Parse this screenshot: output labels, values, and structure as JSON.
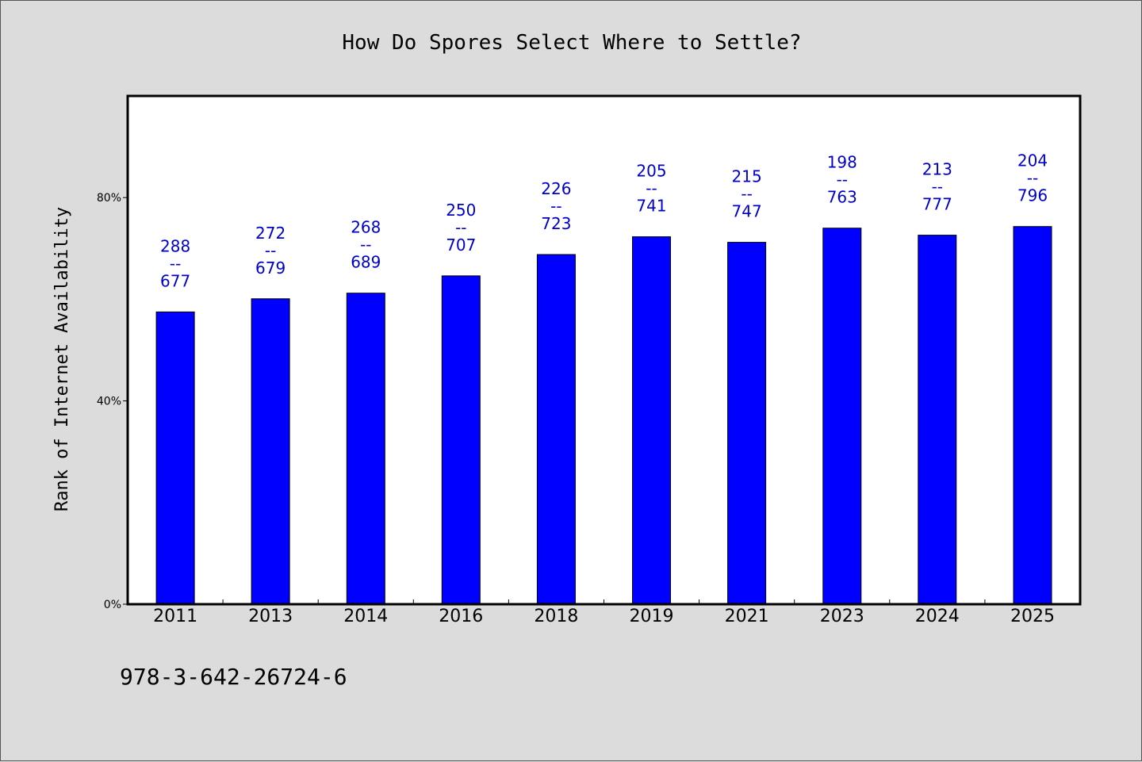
{
  "chart_data": {
    "type": "bar",
    "title": "How Do Spores Select Where to Settle?",
    "xlabel": "",
    "ylabel": "Rank of Internet Availability",
    "categories": [
      "2011",
      "2013",
      "2014",
      "2016",
      "2018",
      "2019",
      "2021",
      "2023",
      "2024",
      "2025"
    ],
    "values": [
      57.5,
      60.1,
      61.2,
      64.6,
      68.8,
      72.3,
      71.2,
      74.0,
      72.6,
      74.3
    ],
    "data_labels": [
      [
        "288",
        "--",
        "677"
      ],
      [
        "272",
        "--",
        "679"
      ],
      [
        "268",
        "--",
        "689"
      ],
      [
        "250",
        "--",
        "707"
      ],
      [
        "226",
        "--",
        "723"
      ],
      [
        "205",
        "--",
        "741"
      ],
      [
        "215",
        "--",
        "747"
      ],
      [
        "198",
        "--",
        "763"
      ],
      [
        "213",
        "--",
        "777"
      ],
      [
        "204",
        "--",
        "796"
      ]
    ],
    "yticks": [
      0,
      40,
      80
    ],
    "ytick_labels": [
      "0%",
      "40%",
      "80%"
    ],
    "ylim": [
      0,
      100
    ],
    "grid": false,
    "legend": "none",
    "bar_color": "#0000ff",
    "label_color": "#0000cc",
    "plot_background": "#ffffff",
    "page_background": "#dcdcdc"
  },
  "footnote": "978-3-642-26724-6"
}
